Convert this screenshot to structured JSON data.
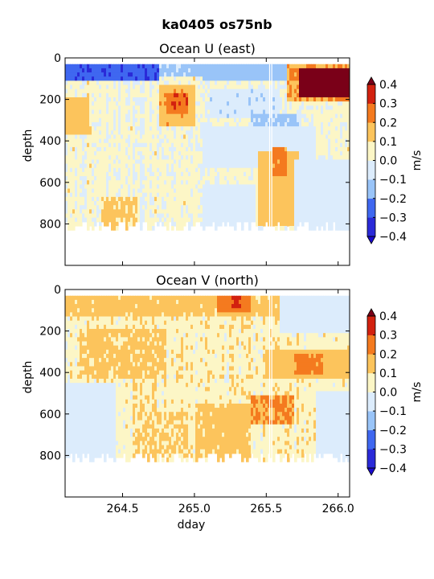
{
  "figure": {
    "suptitle": "ka0405 os75nb"
  },
  "chart_data": [
    {
      "type": "heatmap",
      "title": "Ocean U (east)",
      "xlabel": "",
      "ylabel": "depth",
      "xlim": [
        264.1,
        266.08
      ],
      "ylim": [
        1000,
        0
      ],
      "x_ticks": [
        264.5,
        265.0,
        265.5,
        266.0
      ],
      "x_tick_labels": [
        "",
        "",
        "",
        ""
      ],
      "y_ticks": [
        0,
        200,
        400,
        600,
        800
      ],
      "y_tick_labels": [
        "0",
        "200",
        "400",
        "600",
        "800"
      ],
      "colorbar": {
        "label": "m/s",
        "levels": [
          -0.4,
          -0.3,
          -0.2,
          -0.1,
          0.0,
          0.1,
          0.2,
          0.3,
          0.4
        ],
        "tick_labels": [
          "−0.4",
          "−0.3",
          "−0.2",
          "−0.1",
          "0.0",
          "0.1",
          "0.2",
          "0.3",
          "0.4"
        ],
        "extend": "both"
      },
      "background_value": 0.02,
      "data_depth_range": [
        30,
        830
      ],
      "features": [
        {
          "dday": [
            264.1,
            264.75
          ],
          "depth": [
            30,
            110
          ],
          "value": -0.28
        },
        {
          "dday": [
            264.75,
            265.05
          ],
          "depth": [
            30,
            80
          ],
          "value": -0.12
        },
        {
          "dday": [
            265.05,
            265.75
          ],
          "depth": [
            30,
            100
          ],
          "value": -0.15
        },
        {
          "dday": [
            264.75,
            265.0
          ],
          "depth": [
            140,
            320
          ],
          "value": 0.17
        },
        {
          "dday": [
            264.8,
            264.95
          ],
          "depth": [
            170,
            270
          ],
          "value": 0.28
        },
        {
          "dday": [
            264.1,
            264.26
          ],
          "depth": [
            200,
            370
          ],
          "value": 0.16
        },
        {
          "dday": [
            265.65,
            266.08
          ],
          "depth": [
            30,
            210
          ],
          "value": 0.2
        },
        {
          "dday": [
            265.72,
            266.08
          ],
          "depth": [
            50,
            180
          ],
          "value": 0.45
        },
        {
          "dday": [
            265.1,
            265.6
          ],
          "depth": [
            150,
            290
          ],
          "value": -0.07
        },
        {
          "dday": [
            265.4,
            265.75
          ],
          "depth": [
            280,
            380
          ],
          "value": -0.12
        },
        {
          "dday": [
            265.05,
            265.85
          ],
          "depth": [
            330,
            520
          ],
          "value": -0.06
        },
        {
          "dday": [
            265.45,
            265.72
          ],
          "depth": [
            450,
            800
          ],
          "value": 0.14
        },
        {
          "dday": [
            265.55,
            265.65
          ],
          "depth": [
            440,
            570
          ],
          "value": 0.23
        },
        {
          "dday": [
            265.7,
            266.08
          ],
          "depth": [
            500,
            830
          ],
          "value": -0.05
        },
        {
          "dday": [
            265.05,
            265.42
          ],
          "depth": [
            620,
            830
          ],
          "value": -0.05
        },
        {
          "dday": [
            264.35,
            264.6
          ],
          "depth": [
            680,
            830
          ],
          "value": 0.12
        }
      ]
    },
    {
      "type": "heatmap",
      "title": "Ocean V (north)",
      "xlabel": "dday",
      "ylabel": "depth",
      "xlim": [
        264.1,
        266.08
      ],
      "ylim": [
        1000,
        0
      ],
      "x_ticks": [
        264.5,
        265.0,
        265.5,
        266.0
      ],
      "x_tick_labels": [
        "264.5",
        "265.0",
        "265.5",
        "266.0"
      ],
      "y_ticks": [
        0,
        200,
        400,
        600,
        800
      ],
      "y_tick_labels": [
        "0",
        "200",
        "400",
        "600",
        "800"
      ],
      "colorbar": {
        "label": "m/s",
        "levels": [
          -0.4,
          -0.3,
          -0.2,
          -0.1,
          0.0,
          0.1,
          0.2,
          0.3,
          0.4
        ],
        "tick_labels": [
          "−0.4",
          "−0.3",
          "−0.2",
          "−0.1",
          "0.0",
          "0.1",
          "0.2",
          "0.3",
          "0.4"
        ],
        "extend": "both"
      },
      "background_value": 0.06,
      "data_depth_range": [
        30,
        830
      ],
      "features": [
        {
          "dday": [
            264.1,
            265.6
          ],
          "depth": [
            30,
            120
          ],
          "value": 0.13
        },
        {
          "dday": [
            265.15,
            265.4
          ],
          "depth": [
            40,
            110
          ],
          "value": 0.24
        },
        {
          "dday": [
            265.25,
            265.33
          ],
          "depth": [
            40,
            90
          ],
          "value": 0.33
        },
        {
          "dday": [
            265.6,
            266.08
          ],
          "depth": [
            30,
            200
          ],
          "value": -0.05
        },
        {
          "dday": [
            264.2,
            264.8
          ],
          "depth": [
            200,
            420
          ],
          "value": 0.12
        },
        {
          "dday": [
            265.5,
            266.08
          ],
          "depth": [
            300,
            430
          ],
          "value": 0.14
        },
        {
          "dday": [
            265.7,
            265.9
          ],
          "depth": [
            320,
            400
          ],
          "value": 0.22
        },
        {
          "dday": [
            265.4,
            265.7
          ],
          "depth": [
            520,
            640
          ],
          "value": 0.21
        },
        {
          "dday": [
            264.1,
            264.45
          ],
          "depth": [
            460,
            830
          ],
          "value": -0.04
        },
        {
          "dday": [
            265.0,
            265.4
          ],
          "depth": [
            560,
            830
          ],
          "value": 0.13
        },
        {
          "dday": [
            264.6,
            264.95
          ],
          "depth": [
            600,
            830
          ],
          "value": 0.11
        },
        {
          "dday": [
            265.85,
            266.08
          ],
          "depth": [
            500,
            830
          ],
          "value": -0.05
        }
      ]
    }
  ]
}
